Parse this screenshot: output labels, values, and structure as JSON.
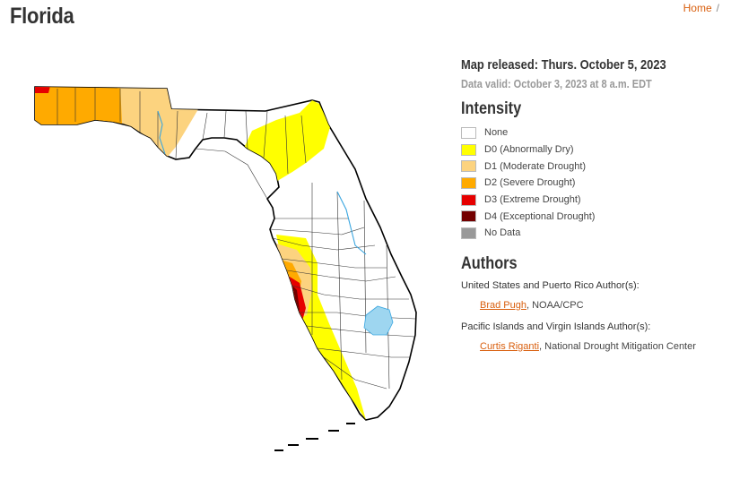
{
  "page_title": "Florida",
  "breadcrumb": {
    "home": "Home",
    "separator": "/",
    "current": ""
  },
  "map_info": {
    "released": "Map released: Thurs. October 5, 2023",
    "valid": "Data valid: October 3, 2023 at 8 a.m. EDT"
  },
  "intensity": {
    "heading": "Intensity",
    "items": [
      {
        "code": "",
        "label": "None",
        "color": "#ffffff"
      },
      {
        "code": "D0",
        "label": "(Abnormally Dry)",
        "color": "#ffff00"
      },
      {
        "code": "D1",
        "label": "(Moderate Drought)",
        "color": "#fcd37f"
      },
      {
        "code": "D2",
        "label": "(Severe Drought)",
        "color": "#ffaa00"
      },
      {
        "code": "D3",
        "label": "(Extreme Drought)",
        "color": "#e60000"
      },
      {
        "code": "D4",
        "label": "(Exceptional Drought)",
        "color": "#730000"
      },
      {
        "code": "",
        "label": "No Data",
        "color": "#999999"
      }
    ]
  },
  "authors": {
    "heading": "Authors",
    "groups": [
      {
        "title": "United States and Puerto Rico Author(s):",
        "name": "Brad Pugh",
        "org": ", NOAA/CPC"
      },
      {
        "title": "Pacific Islands and Virgin Islands Author(s):",
        "name": "Curtis Riganti",
        "org": ", National Drought Mitigation Center"
      }
    ]
  },
  "map": {
    "water_color": "#9ed6f0",
    "river_color": "#3aa6e0"
  }
}
